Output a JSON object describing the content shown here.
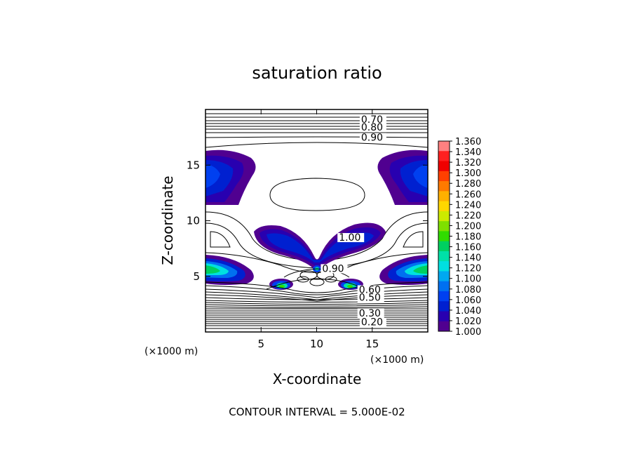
{
  "chart_data": {
    "type": "contour",
    "title": "saturation ratio",
    "xlabel": "X-coordinate",
    "ylabel": "Z-coordinate",
    "x_unit": "(×1000 m)",
    "z_unit": "(×1000 m)",
    "xlim": [
      0,
      20
    ],
    "ylim": [
      0,
      20
    ],
    "x_ticks": [
      5,
      10,
      15
    ],
    "y_ticks": [
      5,
      10,
      15
    ],
    "x_tick_labels": [
      "5",
      "10",
      "15"
    ],
    "y_tick_labels": [
      "5",
      "10",
      "15"
    ],
    "contour_interval_text": "CONTOUR INTERVAL = 5.000E-02",
    "contour_labels": [
      {
        "text": "0.70",
        "x": 14.0,
        "z": 18.8
      },
      {
        "text": "0.80",
        "x": 14.0,
        "z": 18.1
      },
      {
        "text": "0.90",
        "x": 14.0,
        "z": 17.2
      },
      {
        "text": "1.00",
        "x": 12.0,
        "z": 8.2
      },
      {
        "text": "0.90",
        "x": 10.5,
        "z": 5.4
      },
      {
        "text": "0.60",
        "x": 13.8,
        "z": 3.5
      },
      {
        "text": "0.50",
        "x": 13.8,
        "z": 2.8
      },
      {
        "text": "0.30",
        "x": 13.8,
        "z": 1.4
      },
      {
        "text": "0.20",
        "x": 14.0,
        "z": 0.6
      }
    ],
    "colorbar": {
      "min": 1.0,
      "max": 1.36,
      "step": 0.02,
      "labels": [
        "1.360",
        "1.340",
        "1.320",
        "1.300",
        "1.280",
        "1.260",
        "1.240",
        "1.220",
        "1.200",
        "1.180",
        "1.160",
        "1.140",
        "1.120",
        "1.100",
        "1.080",
        "1.060",
        "1.040",
        "1.020",
        "1.000"
      ],
      "colors": [
        "#ff8080",
        "#ff2020",
        "#f00000",
        "#ff4000",
        "#ff7a00",
        "#ffb000",
        "#ffd700",
        "#ccea00",
        "#7fe000",
        "#30dc00",
        "#00d060",
        "#00e0a8",
        "#00e0e0",
        "#00a8f0",
        "#0070f0",
        "#0040f0",
        "#0020d0",
        "#2800b0",
        "#500090"
      ]
    }
  }
}
